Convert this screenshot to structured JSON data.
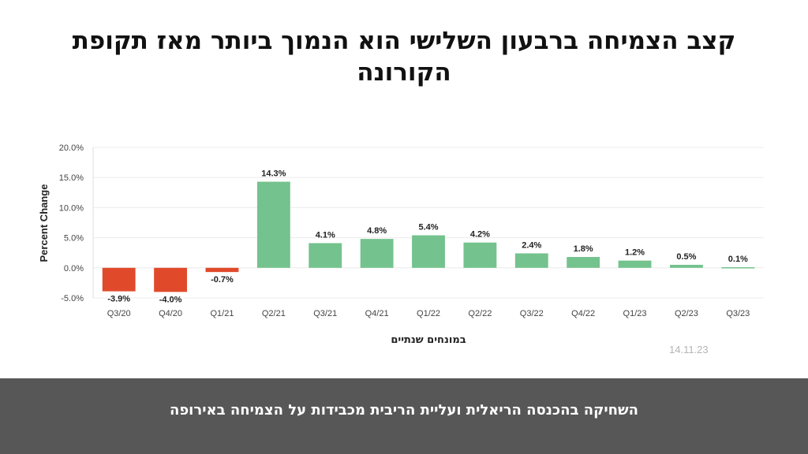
{
  "headline": "קצב הצמיחה ברבעון השלישי הוא הנמוך ביותר מאז תקופת הקורונה",
  "date_stamp": "14.11.23",
  "footer": {
    "caption": "השחיקה בהכנסה הריאלית ועליית הריבית מכבידות על הצמיחה באירופה"
  },
  "colors": {
    "positive": "#74c28d",
    "negative": "#e04a2b",
    "grid": "#ececec",
    "axis_text": "#444444"
  },
  "chart_data": {
    "type": "bar",
    "title": "",
    "xlabel": "במונחים שנתיים",
    "ylabel": "Percent Change",
    "categories": [
      "Q3/20",
      "Q4/20",
      "Q1/21",
      "Q2/21",
      "Q3/21",
      "Q4/21",
      "Q1/22",
      "Q2/22",
      "Q3/22",
      "Q4/22",
      "Q1/23",
      "Q2/23",
      "Q3/23"
    ],
    "values": [
      -3.9,
      -4.0,
      -0.7,
      14.3,
      4.1,
      4.8,
      5.4,
      4.2,
      2.4,
      1.8,
      1.2,
      0.5,
      0.1
    ],
    "data_labels": [
      "-3.9%",
      "-4.0%",
      "-0.7%",
      "14.3%",
      "4.1%",
      "4.8%",
      "5.4%",
      "4.2%",
      "2.4%",
      "1.8%",
      "1.2%",
      "0.5%",
      "0.1%"
    ],
    "y_ticks": [
      -5,
      0,
      5,
      10,
      15,
      20
    ],
    "y_tick_labels": [
      "-5.0%",
      "0.0%",
      "5.0%",
      "10.0%",
      "15.0%",
      "20.0%"
    ],
    "ylim": [
      -5,
      20
    ],
    "grid": true,
    "legend": "none"
  }
}
